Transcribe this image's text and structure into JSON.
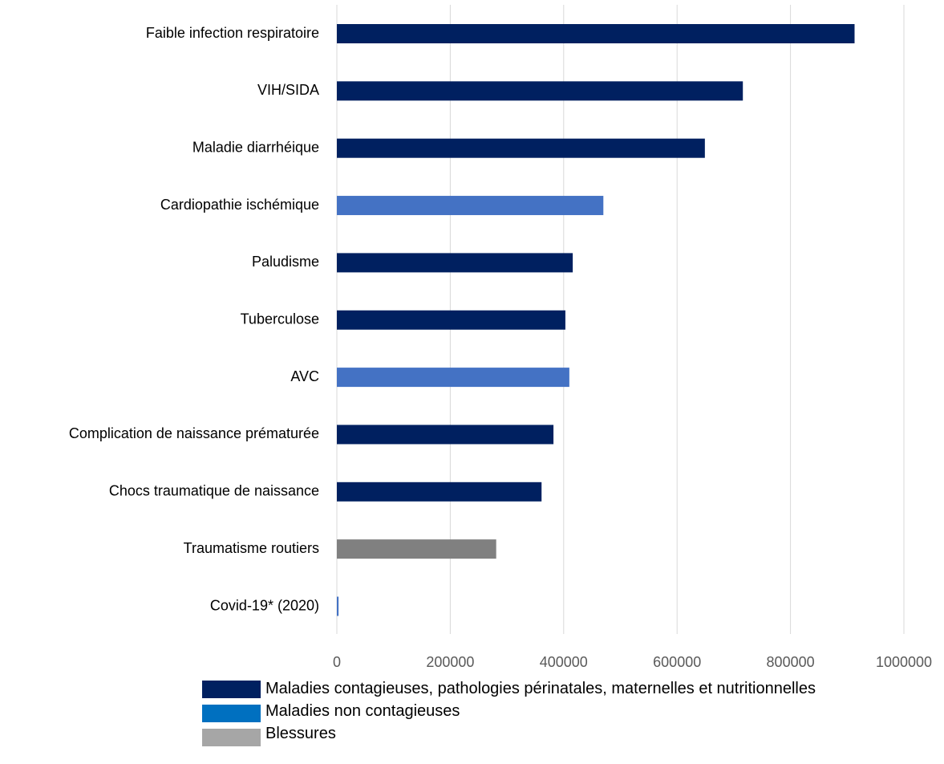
{
  "chart_data": {
    "type": "bar",
    "orientation": "horizontal",
    "categories": [
      "Faible infection respiratoire",
      "VIH/SIDA",
      "Maladie diarrhéique",
      "Cardiopathie ischémique",
      "Paludisme",
      "Tuberculose",
      "AVC",
      "Complication de naissance prématurée",
      "Chocs traumatique de naissance",
      "Traumatisme routiers",
      "Covid-19* (2020)"
    ],
    "values": [
      913000,
      716000,
      649000,
      470000,
      416000,
      403000,
      410000,
      382000,
      361000,
      281000,
      3000
    ],
    "colors": [
      "#002060",
      "#002060",
      "#002060",
      "#4472c4",
      "#002060",
      "#002060",
      "#4472c4",
      "#002060",
      "#002060",
      "#808080",
      "#4472c4"
    ],
    "xlim": [
      0,
      1000000
    ],
    "xticks": [
      0,
      200000,
      400000,
      600000,
      800000,
      1000000
    ],
    "grid": true,
    "legend": [
      {
        "name": "Maladies contagieuses, pathologies périnatales, maternelles et nutritionnelles",
        "color": "#002060"
      },
      {
        "color": "#0070c0"
      },
      {
        "name": "Maladies non contagieuses",
        "color": "#a6a6a6"
      },
      {
        "name": "Blessures"
      }
    ]
  }
}
